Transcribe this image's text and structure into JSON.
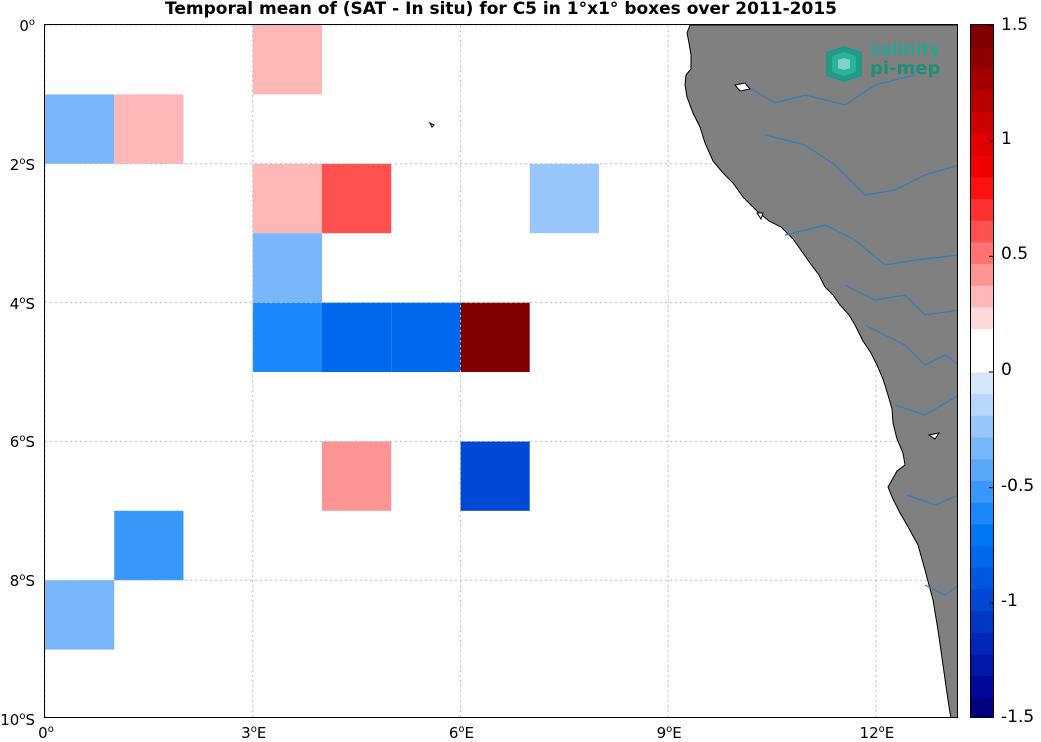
{
  "title": "Temporal mean of (SAT - In situ) for C5 in 1°x1° boxes over 2011-2015",
  "map": {
    "lon_range": [
      0,
      13.2
    ],
    "lat_range": [
      -10,
      0
    ],
    "land_color": "#808080",
    "river_color": "#2f7fc0",
    "grid_color": "#bdbdbd",
    "y_ticks": [
      {
        "lat": 0,
        "label": "0",
        "sup": "o",
        "suffix": ""
      },
      {
        "lat": -2,
        "label": "2",
        "sup": "o",
        "suffix": "S"
      },
      {
        "lat": -4,
        "label": "4",
        "sup": "o",
        "suffix": "S"
      },
      {
        "lat": -6,
        "label": "6",
        "sup": "o",
        "suffix": "S"
      },
      {
        "lat": -8,
        "label": "8",
        "sup": "o",
        "suffix": "S"
      },
      {
        "lat": -10,
        "label": "10",
        "sup": "o",
        "suffix": "S"
      }
    ],
    "x_ticks": [
      {
        "lon": 0,
        "label": "0",
        "sup": "o",
        "suffix": ""
      },
      {
        "lon": 3,
        "label": "3",
        "sup": "o",
        "suffix": "E"
      },
      {
        "lon": 6,
        "label": "6",
        "sup": "o",
        "suffix": "E"
      },
      {
        "lon": 9,
        "label": "9",
        "sup": "o",
        "suffix": "E"
      },
      {
        "lon": 12,
        "label": "12",
        "sup": "o",
        "suffix": "E"
      }
    ],
    "boxes": [
      {
        "lon": 3,
        "lat": 0,
        "value": 0.3
      },
      {
        "lon": 0,
        "lat": -1,
        "value": -0.35
      },
      {
        "lon": 1,
        "lat": -1,
        "value": 0.3
      },
      {
        "lon": 3,
        "lat": -2,
        "value": 0.3
      },
      {
        "lon": 4,
        "lat": -2,
        "value": 0.6
      },
      {
        "lon": 7,
        "lat": -2,
        "value": -0.25
      },
      {
        "lon": 3,
        "lat": -3,
        "value": -0.35
      },
      {
        "lon": 3,
        "lat": -4,
        "value": -0.6
      },
      {
        "lon": 4,
        "lat": -4,
        "value": -0.8
      },
      {
        "lon": 5,
        "lat": -4,
        "value": -0.8
      },
      {
        "lon": 6,
        "lat": -4,
        "value": 1.5
      },
      {
        "lon": 4,
        "lat": -6,
        "value": 0.45
      },
      {
        "lon": 6,
        "lat": -6,
        "value": -1.0
      },
      {
        "lon": 1,
        "lat": -7,
        "value": -0.5
      },
      {
        "lon": 2,
        "lat": -7,
        "value": 0.15
      },
      {
        "lon": 0,
        "lat": -8,
        "value": -0.35
      }
    ]
  },
  "colorbar": {
    "min": -1.5,
    "max": 1.5,
    "ticks": [
      {
        "value": 1.5,
        "label": "1.5"
      },
      {
        "value": 1,
        "label": "1"
      },
      {
        "value": 0.5,
        "label": "0.5"
      },
      {
        "value": 0,
        "label": "0"
      },
      {
        "value": -0.5,
        "label": "-0.5"
      },
      {
        "value": -1,
        "label": "-1"
      },
      {
        "value": -1.5,
        "label": "-1.5"
      }
    ],
    "colors": [
      "#000080",
      "#00089a",
      "#0018a8",
      "#0028b8",
      "#0038c6",
      "#0048d4",
      "#0058e0",
      "#0068ec",
      "#0078f6",
      "#1a88fa",
      "#3898fa",
      "#58a8fa",
      "#78b6fa",
      "#98c6fa",
      "#b6d6fa",
      "#d6e6fa",
      "#ffffff",
      "#ffffff",
      "#ffd8d8",
      "#ffb6b6",
      "#ff9494",
      "#ff7272",
      "#ff5050",
      "#ff3030",
      "#ff1010",
      "#f00000",
      "#e00000",
      "#cc0000",
      "#b80000",
      "#a40000",
      "#900000",
      "#800000"
    ]
  },
  "logo": {
    "line1": "salinity",
    "line2": "pi-mep"
  }
}
